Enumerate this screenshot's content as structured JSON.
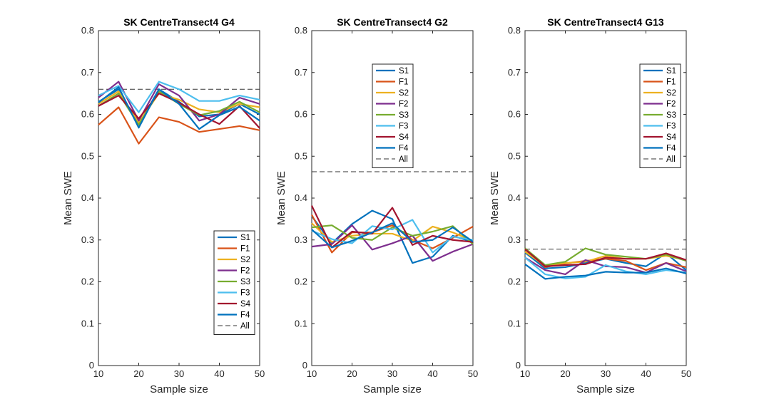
{
  "figure": {
    "panels_label": "Mean SWE vs Sample size"
  },
  "chart_data": [
    {
      "type": "line",
      "title": "SK CentreTransect4 G4",
      "xlabel": "Sample size",
      "ylabel": "Mean SWE",
      "xlim": [
        10,
        50
      ],
      "ylim": [
        0,
        0.8
      ],
      "xticks": [
        "10",
        "20",
        "30",
        "40",
        "50"
      ],
      "yticks": [
        "0",
        "0.1",
        "0.2",
        "0.3",
        "0.4",
        "0.5",
        "0.6",
        "0.7",
        "0.8"
      ],
      "legend_position": "bottom-right",
      "x": [
        10,
        15,
        20,
        25,
        30,
        35,
        40,
        45,
        50
      ],
      "series": [
        {
          "name": "S1",
          "color": "#0072BD",
          "values": [
            0.63,
            0.66,
            0.575,
            0.66,
            0.63,
            0.595,
            0.6,
            0.625,
            0.6
          ]
        },
        {
          "name": "F1",
          "color": "#D95319",
          "values": [
            0.575,
            0.617,
            0.53,
            0.593,
            0.582,
            0.558,
            0.565,
            0.572,
            0.562
          ]
        },
        {
          "name": "S2",
          "color": "#EDB120",
          "values": [
            0.625,
            0.655,
            0.58,
            0.65,
            0.635,
            0.612,
            0.605,
            0.625,
            0.617
          ]
        },
        {
          "name": "F2",
          "color": "#7E2F8E",
          "values": [
            0.64,
            0.678,
            0.585,
            0.672,
            0.645,
            0.585,
            0.6,
            0.64,
            0.625
          ]
        },
        {
          "name": "S3",
          "color": "#77AC30",
          "values": [
            0.62,
            0.65,
            0.575,
            0.655,
            0.625,
            0.598,
            0.608,
            0.63,
            0.605
          ]
        },
        {
          "name": "F3",
          "color": "#4DBEEE",
          "values": [
            0.645,
            0.668,
            0.605,
            0.678,
            0.66,
            0.632,
            0.632,
            0.645,
            0.635
          ]
        },
        {
          "name": "S4",
          "color": "#A2142F",
          "values": [
            0.62,
            0.645,
            0.59,
            0.65,
            0.628,
            0.6,
            0.577,
            0.62,
            0.567
          ]
        },
        {
          "name": "F4",
          "color": "#0072BD",
          "values": [
            0.628,
            0.665,
            0.568,
            0.66,
            0.625,
            0.565,
            0.598,
            0.618,
            0.585
          ]
        }
      ],
      "reference": {
        "name": "All",
        "value": 0.66,
        "color": "#333333"
      }
    },
    {
      "type": "line",
      "title": "SK CentreTransect4 G2",
      "xlabel": "Sample size",
      "ylabel": "Mean SWE",
      "xlim": [
        10,
        50
      ],
      "ylim": [
        0,
        0.8
      ],
      "xticks": [
        "10",
        "20",
        "30",
        "40",
        "50"
      ],
      "yticks": [
        "0",
        "0.1",
        "0.2",
        "0.3",
        "0.4",
        "0.5",
        "0.6",
        "0.7",
        "0.8"
      ],
      "legend_position": "top-center",
      "x": [
        10,
        15,
        20,
        25,
        30,
        35,
        40,
        45,
        50
      ],
      "series": [
        {
          "name": "S1",
          "color": "#0072BD",
          "values": [
            0.357,
            0.292,
            0.338,
            0.37,
            0.35,
            0.245,
            0.26,
            0.31,
            0.295
          ]
        },
        {
          "name": "F1",
          "color": "#D95319",
          "values": [
            0.36,
            0.27,
            0.318,
            0.318,
            0.335,
            0.3,
            0.28,
            0.305,
            0.332
          ]
        },
        {
          "name": "S2",
          "color": "#EDB120",
          "values": [
            0.34,
            0.295,
            0.31,
            0.315,
            0.315,
            0.298,
            0.332,
            0.318,
            0.298
          ]
        },
        {
          "name": "F2",
          "color": "#7E2F8E",
          "values": [
            0.284,
            0.29,
            0.335,
            0.277,
            0.292,
            0.31,
            0.25,
            0.272,
            0.29
          ]
        },
        {
          "name": "S3",
          "color": "#77AC30",
          "values": [
            0.33,
            0.335,
            0.305,
            0.3,
            0.33,
            0.31,
            0.32,
            0.333,
            0.29
          ]
        },
        {
          "name": "F3",
          "color": "#4DBEEE",
          "values": [
            0.322,
            0.302,
            0.292,
            0.333,
            0.325,
            0.348,
            0.27,
            0.308,
            0.3
          ]
        },
        {
          "name": "S4",
          "color": "#A2142F",
          "values": [
            0.382,
            0.282,
            0.32,
            0.315,
            0.377,
            0.288,
            0.31,
            0.3,
            0.295
          ]
        },
        {
          "name": "F4",
          "color": "#0072BD",
          "values": [
            0.325,
            0.282,
            0.298,
            0.318,
            0.34,
            0.295,
            0.3,
            0.33,
            0.296
          ]
        }
      ],
      "reference": {
        "name": "All",
        "value": 0.463,
        "color": "#333333"
      }
    },
    {
      "type": "line",
      "title": "SK CentreTransect4 G13",
      "xlabel": "Sample size",
      "ylabel": "Mean SWE",
      "xlim": [
        10,
        50
      ],
      "ylim": [
        0,
        0.8
      ],
      "xticks": [
        "10",
        "20",
        "30",
        "40",
        "50"
      ],
      "yticks": [
        "0",
        "0.1",
        "0.2",
        "0.3",
        "0.4",
        "0.5",
        "0.6",
        "0.7",
        "0.8"
      ],
      "legend_position": "top-right",
      "x": [
        10,
        15,
        20,
        25,
        30,
        35,
        40,
        45,
        50
      ],
      "series": [
        {
          "name": "S1",
          "color": "#0072BD",
          "values": [
            0.27,
            0.232,
            0.235,
            0.245,
            0.255,
            0.245,
            0.237,
            0.268,
            0.228
          ]
        },
        {
          "name": "F1",
          "color": "#D95319",
          "values": [
            0.278,
            0.235,
            0.244,
            0.25,
            0.255,
            0.25,
            0.228,
            0.245,
            0.235
          ]
        },
        {
          "name": "S2",
          "color": "#EDB120",
          "values": [
            0.272,
            0.238,
            0.245,
            0.248,
            0.262,
            0.255,
            0.255,
            0.262,
            0.252
          ]
        },
        {
          "name": "F2",
          "color": "#7E2F8E",
          "values": [
            0.258,
            0.228,
            0.218,
            0.252,
            0.237,
            0.235,
            0.222,
            0.245,
            0.225
          ]
        },
        {
          "name": "S3",
          "color": "#77AC30",
          "values": [
            0.28,
            0.24,
            0.248,
            0.28,
            0.265,
            0.26,
            0.255,
            0.265,
            0.25
          ]
        },
        {
          "name": "F3",
          "color": "#4DBEEE",
          "values": [
            0.258,
            0.218,
            0.208,
            0.212,
            0.24,
            0.225,
            0.218,
            0.228,
            0.222
          ]
        },
        {
          "name": "S4",
          "color": "#A2142F",
          "values": [
            0.278,
            0.237,
            0.24,
            0.242,
            0.258,
            0.255,
            0.255,
            0.268,
            0.252
          ]
        },
        {
          "name": "F4",
          "color": "#0072BD",
          "values": [
            0.242,
            0.207,
            0.212,
            0.215,
            0.224,
            0.222,
            0.222,
            0.232,
            0.22
          ]
        }
      ],
      "reference": {
        "name": "All",
        "value": 0.278,
        "color": "#333333"
      }
    }
  ]
}
